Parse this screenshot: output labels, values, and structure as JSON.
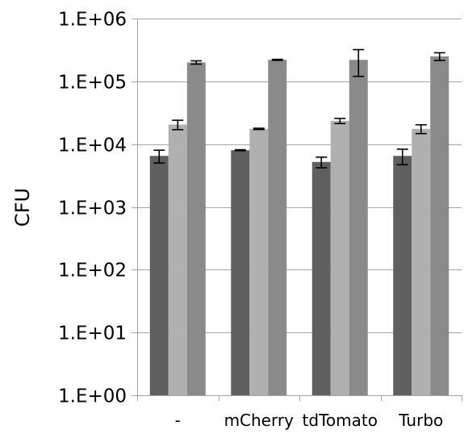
{
  "chart_data": {
    "type": "bar",
    "title": "",
    "xlabel": "",
    "ylabel": "CFU",
    "yscale": "log",
    "ylim": [
      1,
      1000000
    ],
    "yticks": [
      1,
      10,
      100,
      1000,
      10000,
      100000,
      1000000
    ],
    "ytick_labels": [
      "1.E+00",
      "1.E+01",
      "1.E+02",
      "1.E+03",
      "1.E+04",
      "1.E+05",
      "1.E+06"
    ],
    "categories": [
      "-",
      "mCherry",
      "tdTomato",
      "Turbo"
    ],
    "grid": "horizontal",
    "legend": "none",
    "series": [
      {
        "color": "#5f5f5f",
        "values": [
          6500,
          8000,
          5200,
          6500
        ],
        "errors": [
          1500,
          150,
          1000,
          1800
        ]
      },
      {
        "color": "#b0b0b0",
        "values": [
          20500,
          17500,
          23500,
          17500
        ],
        "errors": [
          3500,
          400,
          2200,
          2800
        ]
      },
      {
        "color": "#8a8a8a",
        "values": [
          200000,
          220000,
          220000,
          250000
        ],
        "errors": [
          12000,
          4000,
          100000,
          35000
        ]
      }
    ]
  }
}
